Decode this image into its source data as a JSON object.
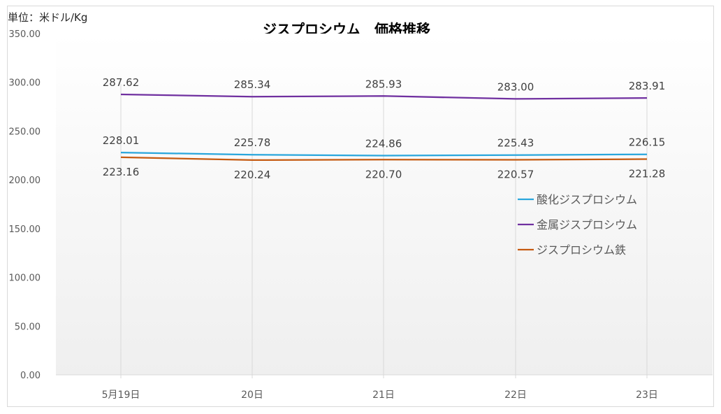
{
  "chart_data": {
    "type": "line",
    "title": "ジスプロシウム　価格推移",
    "unit_label": "単位：米ドル/Kg",
    "categories": [
      "5月19日",
      "20日",
      "21日",
      "22日",
      "23日"
    ],
    "y_ticks": [
      "0.00",
      "50.00",
      "100.00",
      "150.00",
      "200.00",
      "250.00",
      "300.00",
      "350.00"
    ],
    "ylim": [
      0,
      350
    ],
    "grid": "vertical",
    "legend_position": "right",
    "series": [
      {
        "name": "酸化ジスプロシウム",
        "color": "#2aa6dc",
        "values": [
          228.01,
          225.78,
          224.86,
          225.43,
          226.15
        ],
        "labels": [
          "228.01",
          "225.78",
          "224.86",
          "225.43",
          "226.15"
        ],
        "label_position": "above"
      },
      {
        "name": "金属ジスプロシウム",
        "color": "#7030a0",
        "values": [
          287.62,
          285.34,
          285.93,
          283.0,
          283.91
        ],
        "labels": [
          "287.62",
          "285.34",
          "285.93",
          "283.00",
          "283.91"
        ],
        "label_position": "above"
      },
      {
        "name": "ジスプロシウム鉄",
        "color": "#c55a11",
        "values": [
          223.16,
          220.24,
          220.7,
          220.57,
          221.28
        ],
        "labels": [
          "223.16",
          "220.24",
          "220.70",
          "220.57",
          "221.28"
        ],
        "label_position": "below"
      }
    ]
  }
}
